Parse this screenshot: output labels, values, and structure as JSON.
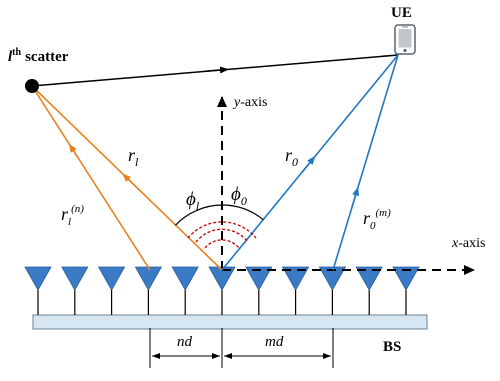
{
  "labels": {
    "scatter_l": "l",
    "scatter_th": "th",
    "scatter_word": "scatter",
    "ue": "UE",
    "y_axis_var": "y",
    "y_axis_suffix": "-axis",
    "x_axis_var": "x",
    "x_axis_suffix": "-axis",
    "r_l": "r",
    "r_l_sub": "l",
    "r_0": "r",
    "r_0_sub": "0",
    "r_ln": "r",
    "r_ln_sub": "l",
    "r_ln_sup": "(n)",
    "r_0m": "r",
    "r_0m_sub": "0",
    "r_0m_sup": "(m)",
    "phi_l": "ϕ",
    "phi_l_sub": "l",
    "phi_0": "ϕ",
    "phi_0_sub": "0",
    "nd": "nd",
    "md": "md",
    "bs": "BS"
  },
  "colors": {
    "orange_path": "#E8821E",
    "blue_path": "#1F78C0",
    "antenna": "#3B7BC6",
    "panel_fill": "#D6E6F2",
    "panel_stroke": "#6E8192",
    "wave": "#C00000",
    "scatter_dot": "#000000"
  },
  "antenna_count": 11
}
